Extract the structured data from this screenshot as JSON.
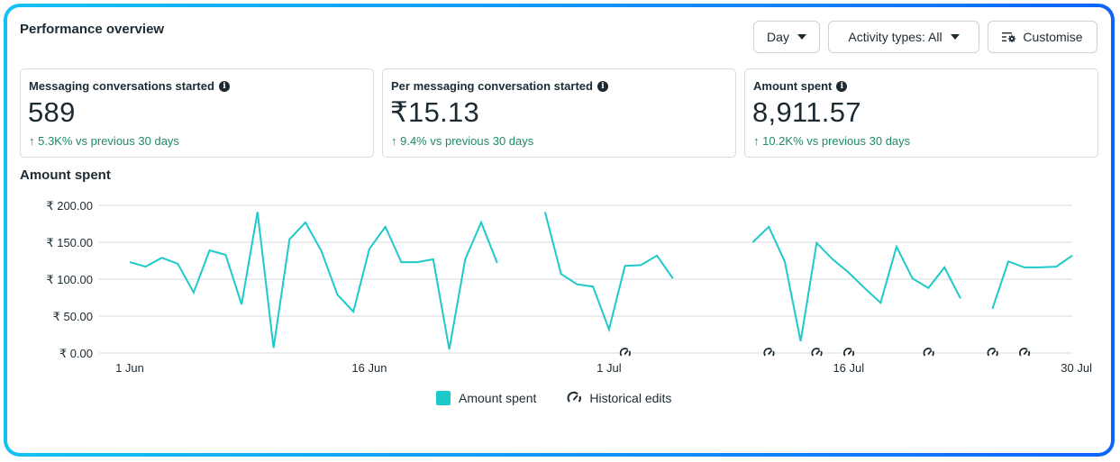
{
  "header": {
    "title": "Performance overview",
    "day_button": "Day",
    "activity_button": "Activity types: All",
    "customise_button": "Customise"
  },
  "cards": [
    {
      "label": "Messaging conversations started",
      "value": "589",
      "delta": "↑ 5.3K% vs previous 30 days"
    },
    {
      "label": "Per messaging conversation started",
      "value": "₹15.13",
      "delta": "↑ 9.4% vs previous 30 days"
    },
    {
      "label": "Amount spent",
      "value": "8,911.57",
      "delta": "↑ 10.2K% vs previous 30 days"
    }
  ],
  "colors": {
    "series": "#1ec9c9",
    "positive": "#1d8a6a",
    "border_start": "#12c2f4",
    "border_end": "#0c64fb"
  },
  "legend": {
    "series_label": "Amount spent",
    "edits_label": "Historical edits"
  },
  "chart_data": {
    "type": "line",
    "title": "Amount spent",
    "xlabel": "",
    "ylabel": "",
    "ylim": [
      0,
      200
    ],
    "yticks": [
      0,
      50,
      100,
      150,
      200
    ],
    "ytick_labels": [
      "₹ 0.00",
      "₹ 50.00",
      "₹ 100.00",
      "₹ 150.00",
      "₹ 200.00"
    ],
    "xtick_labels": [
      {
        "day": 0,
        "label": "1 Jun"
      },
      {
        "day": 15,
        "label": "16 Jun"
      },
      {
        "day": 30,
        "label": "1 Jul"
      },
      {
        "day": 45,
        "label": "16 Jul"
      },
      {
        "day": 59,
        "label": "30 Jul"
      }
    ],
    "x_days": 60,
    "grid": true,
    "legend_position": "bottom-center",
    "series": [
      {
        "name": "Amount spent",
        "values": [
          123,
          117,
          129,
          121,
          82,
          139,
          133,
          66,
          191,
          7,
          154,
          177,
          138,
          79,
          56,
          141,
          171,
          123,
          123,
          127,
          5,
          127,
          177,
          122,
          null,
          null,
          191,
          107,
          93,
          90,
          32,
          118,
          119,
          132,
          101,
          null,
          null,
          null,
          null,
          150,
          171,
          124,
          16,
          149,
          127,
          109,
          88,
          68,
          144,
          101,
          88,
          116,
          74,
          null,
          60,
          124,
          116,
          116,
          117,
          132
        ]
      }
    ],
    "historical_edit_days": [
      31,
      40,
      43,
      45,
      50,
      54,
      56
    ]
  }
}
